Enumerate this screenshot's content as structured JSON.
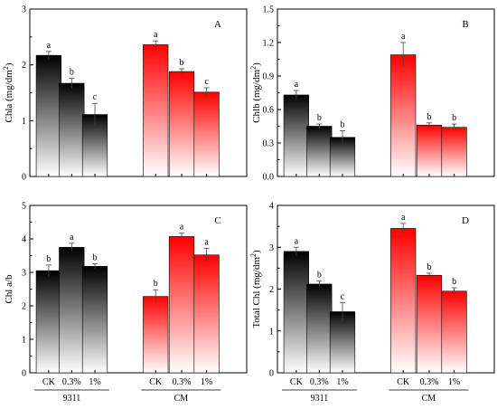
{
  "chart_data": [
    {
      "type": "bar",
      "panel_label": "A",
      "ylabel_main": "Chla (mg/dm",
      "ylabel_sup": "2",
      "ylabel_end": ")",
      "ylim": [
        0,
        3
      ],
      "yticks": [
        0,
        1,
        2,
        3
      ],
      "ytick_labels": [
        "0",
        "1",
        "2",
        "3"
      ],
      "categories": [
        "CK",
        "0.3%",
        "1%"
      ],
      "groups": [
        "9311",
        "CM"
      ],
      "show_xlabels": false,
      "series": [
        {
          "group": "9311",
          "color": "#000000",
          "values": [
            2.17,
            1.67,
            1.11
          ],
          "errors": [
            0.07,
            0.09,
            0.2
          ],
          "letters": [
            "a",
            "b",
            "c"
          ]
        },
        {
          "group": "CM",
          "color": "#ff0000",
          "values": [
            2.36,
            1.88,
            1.51
          ],
          "errors": [
            0.07,
            0.05,
            0.08
          ],
          "letters": [
            "a",
            "b",
            "c"
          ]
        }
      ]
    },
    {
      "type": "bar",
      "panel_label": "B",
      "ylabel_main": "Chlb (mg/dm",
      "ylabel_sup": "2",
      "ylabel_end": ")",
      "ylim": [
        0,
        1.5
      ],
      "yticks": [
        0,
        0.3,
        0.6,
        0.9,
        1.2,
        1.5
      ],
      "ytick_labels": [
        "0.0",
        "0.3",
        "0.6",
        "0.9",
        "1.2",
        "1.5"
      ],
      "categories": [
        "CK",
        "0.3%",
        "1%"
      ],
      "groups": [
        "9311",
        "CM"
      ],
      "show_xlabels": false,
      "series": [
        {
          "group": "9311",
          "color": "#000000",
          "values": [
            0.73,
            0.45,
            0.35
          ],
          "errors": [
            0.04,
            0.02,
            0.06
          ],
          "letters": [
            "a",
            "b",
            "b"
          ]
        },
        {
          "group": "CM",
          "color": "#ff0000",
          "values": [
            1.09,
            0.46,
            0.44
          ],
          "errors": [
            0.11,
            0.02,
            0.03
          ],
          "letters": [
            "a",
            "b",
            "b"
          ]
        }
      ]
    },
    {
      "type": "bar",
      "panel_label": "C",
      "ylabel_main": "Chl a/b",
      "ylabel_sup": "",
      "ylabel_end": "",
      "ylim": [
        0,
        5
      ],
      "yticks": [
        0,
        1,
        2,
        3,
        4,
        5
      ],
      "ytick_labels": [
        "0",
        "1",
        "2",
        "3",
        "4",
        "5"
      ],
      "categories": [
        "CK",
        "0.3%",
        "1%"
      ],
      "groups": [
        "9311",
        "CM"
      ],
      "show_xlabels": true,
      "series": [
        {
          "group": "9311",
          "color": "#000000",
          "values": [
            3.05,
            3.75,
            3.18
          ],
          "errors": [
            0.17,
            0.12,
            0.08
          ],
          "letters": [
            "b",
            "a",
            "b"
          ]
        },
        {
          "group": "CM",
          "color": "#ff0000",
          "values": [
            2.28,
            4.07,
            3.52
          ],
          "errors": [
            0.2,
            0.1,
            0.2
          ],
          "letters": [
            "b",
            "a",
            "a"
          ]
        }
      ]
    },
    {
      "type": "bar",
      "panel_label": "D",
      "ylabel_main": "Total Chl (mg/dm",
      "ylabel_sup": "2",
      "ylabel_end": ")",
      "ylim": [
        0,
        4
      ],
      "yticks": [
        0,
        1,
        2,
        3,
        4
      ],
      "ytick_labels": [
        "0",
        "1",
        "2",
        "3",
        "4"
      ],
      "categories": [
        "CK",
        "0.3%",
        "1%"
      ],
      "groups": [
        "9311",
        "CM"
      ],
      "show_xlabels": true,
      "series": [
        {
          "group": "9311",
          "color": "#000000",
          "values": [
            2.9,
            2.12,
            1.46
          ],
          "errors": [
            0.1,
            0.08,
            0.22
          ],
          "letters": [
            "a",
            "b",
            "c"
          ]
        },
        {
          "group": "CM",
          "color": "#ff0000",
          "values": [
            3.45,
            2.33,
            1.95
          ],
          "errors": [
            0.12,
            0.05,
            0.08
          ],
          "letters": [
            "a",
            "b",
            "b"
          ]
        }
      ]
    }
  ]
}
